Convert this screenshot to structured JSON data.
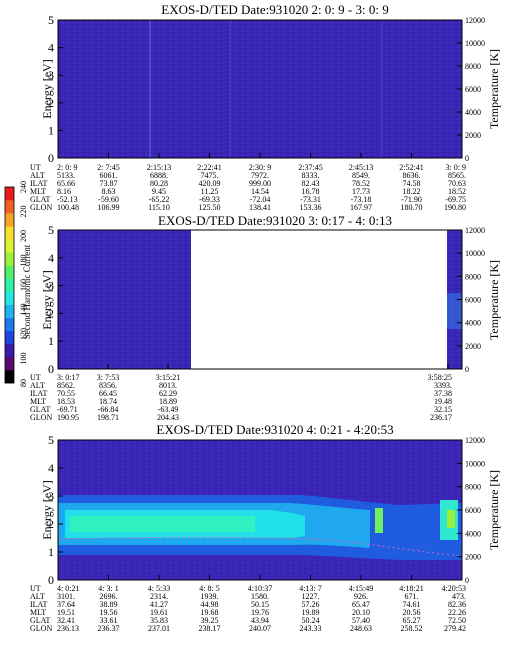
{
  "colorbar": {
    "label": "Second Harmonic Current",
    "ticks": [
      "80",
      "100",
      "120",
      "140",
      "160",
      "180",
      "200",
      "220",
      "240"
    ],
    "colors": [
      "#000000",
      "#5a0a6e",
      "#3a1ca8",
      "#1f44e0",
      "#1e78ee",
      "#1fb4f0",
      "#22e6e4",
      "#2ff0a8",
      "#54f06a",
      "#9cf03a",
      "#ddf22e",
      "#f8e02c",
      "#f6a428",
      "#f26024",
      "#e81e1e"
    ]
  },
  "panels": [
    {
      "title": "EXOS-D/TED   Date:931020  2: 0: 9 - 3: 0: 9",
      "ylabel": "Energy [eV]",
      "y2label": "Temperature [K]",
      "yticks": [
        "0",
        "1",
        "2",
        "3",
        "4",
        "5"
      ],
      "y2ticks": [
        "0",
        "2000",
        "4000",
        "6000",
        "8000",
        "10000",
        "12000"
      ],
      "ephemeris": {
        "labels": [
          "UT",
          "ALT",
          "ILAT",
          "MLT",
          "GLAT",
          "GLON"
        ],
        "columns": [
          [
            "2: 0: 9",
            "5133.",
            "65.66",
            "8.16",
            "-52.13",
            "100.48"
          ],
          [
            "2: 7:45",
            "6061.",
            "73.87",
            "8.63",
            "-59.60",
            "106.99"
          ],
          [
            "2:15:13",
            "6888.",
            "80.28",
            "9.45",
            "-65.22",
            "115.10"
          ],
          [
            "2:22:41",
            "7475.",
            "420.09",
            "11.25",
            "-69.33",
            "125.50"
          ],
          [
            "2:30: 9",
            "7972.",
            "999.00",
            "14.54",
            "-72.04",
            "138.41"
          ],
          [
            "2:37:45",
            "8333.",
            "82.43",
            "16.78",
            "-73.31",
            "153.36"
          ],
          [
            "2:45:13",
            "8549.",
            "78.52",
            "17.73",
            "-73.18",
            "167.97"
          ],
          [
            "2:52:41",
            "8636.",
            "74.58",
            "18.22",
            "-71.90",
            "180.70"
          ],
          [
            "3: 0: 9",
            "8565.",
            "70.63",
            "18.52",
            "-69.75",
            "190.80"
          ]
        ]
      }
    },
    {
      "title": "EXOS-D/TED   Date:931020  3: 0:17 - 4: 0:13",
      "ylabel": "Energy [eV]",
      "y2label": "Temperature [K]",
      "yticks": [
        "0",
        "1",
        "2",
        "3",
        "4",
        "5"
      ],
      "y2ticks": [
        "0",
        "2000",
        "4000",
        "6000",
        "8000",
        "10000",
        "12000"
      ],
      "ephemeris": {
        "labels": [
          "UT",
          "ALT",
          "ILAT",
          "MLT",
          "GLAT",
          "GLON"
        ],
        "columns": [
          [
            "3: 0:17",
            "8562.",
            "70.55",
            "18.53",
            "-69.71",
            "190.95"
          ],
          [
            "3: 7:53",
            "8356.",
            "66.45",
            "18.74",
            "-66.84",
            "198.71"
          ],
          [
            "3:15:21",
            "8013.",
            "62.29",
            "18.89",
            "-63.49",
            "204.43"
          ],
          [
            "3:58:25",
            "3393.",
            "37.38",
            "19.48",
            "32.15",
            "236.17"
          ]
        ]
      }
    },
    {
      "title": "EXOS-D/TED   Date:931020  4: 0:21 - 4:20:53",
      "ylabel": "Energy [eV]",
      "y2label": "Temperature [K]",
      "yticks": [
        "0",
        "1",
        "2",
        "3",
        "4",
        "5"
      ],
      "y2ticks": [
        "0",
        "2000",
        "4000",
        "6000",
        "8000",
        "10000",
        "12000"
      ],
      "ephemeris": {
        "labels": [
          "UT",
          "ALT",
          "ILAT",
          "MLT",
          "GLAT",
          "GLON"
        ],
        "columns": [
          [
            "4: 0:21",
            "3101.",
            "37.64",
            "19.51",
            "32.41",
            "236.13"
          ],
          [
            "4: 3: 1",
            "2696.",
            "38.89",
            "19.56",
            "33.61",
            "236.37"
          ],
          [
            "4: 5:33",
            "2314.",
            "41.27",
            "19.61",
            "35.83",
            "237.01"
          ],
          [
            "4: 8: 5",
            "1939.",
            "44.98",
            "19.68",
            "39.25",
            "238.17"
          ],
          [
            "4:10:37",
            "1580.",
            "50.15",
            "19.76",
            "43.94",
            "240.07"
          ],
          [
            "4:13: 7",
            "1227.",
            "57.26",
            "19.89",
            "50.24",
            "243.33"
          ],
          [
            "4:15:49",
            "926.",
            "65.47",
            "20.10",
            "57.40",
            "248.63"
          ],
          [
            "4:18:21",
            "671.",
            "74.61",
            "20.56",
            "65.27",
            "258.52"
          ],
          [
            "4:20:53",
            "473.",
            "82.36",
            "22.26",
            "72.50",
            "279.42"
          ]
        ]
      }
    }
  ],
  "chart_data": [
    {
      "type": "heatmap",
      "title": "EXOS-D/TED   Date:931020  2: 0: 9 - 3: 0: 9",
      "ylabel": "Energy [eV]",
      "y2label": "Temperature [K]",
      "ylim": [
        0,
        5
      ],
      "y2lim": [
        0,
        12000
      ],
      "x_ticks": [
        "2: 0: 9",
        "2: 7:45",
        "2:15:13",
        "2:22:41",
        "2:30: 9",
        "2:37:45",
        "2:45:13",
        "2:52:41",
        "3: 0: 9"
      ],
      "data_coverage": [
        0,
        1
      ],
      "dominant_level": "~130",
      "bands": []
    },
    {
      "type": "heatmap",
      "title": "EXOS-D/TED   Date:931020  3: 0:17 - 4: 0:13",
      "ylabel": "Energy [eV]",
      "y2label": "Temperature [K]",
      "ylim": [
        0,
        5
      ],
      "y2lim": [
        0,
        12000
      ],
      "x_ticks": [
        "3: 0:17",
        "3: 7:53",
        "3:15:21",
        "3:58:25"
      ],
      "data_coverage": [
        0,
        0.33
      ],
      "late_segment": [
        0.955,
        1
      ],
      "dominant_level": "~120",
      "bands": []
    },
    {
      "type": "heatmap",
      "title": "EXOS-D/TED   Date:931020  4: 0:21 - 4:20:53",
      "ylabel": "Energy [eV]",
      "y2label": "Temperature [K]",
      "ylim": [
        0,
        5
      ],
      "y2lim": [
        0,
        12000
      ],
      "x_ticks": [
        "4: 0:21",
        "4: 3: 1",
        "4: 5:33",
        "4: 8: 5",
        "4:10:37",
        "4:13: 7",
        "4:15:49",
        "4:18:21",
        "4:20:53"
      ],
      "data_coverage": [
        0,
        1
      ],
      "dominant_level": "~140",
      "bands": [
        {
          "energy_center": 2.1,
          "energy_halfwidth": 0.5,
          "level": "~175",
          "x_range": [
            0,
            0.62
          ]
        },
        {
          "energy_center": 2.1,
          "energy_halfwidth": 0.25,
          "level": "~185",
          "x_range": [
            0.0,
            0.45
          ]
        }
      ]
    }
  ]
}
